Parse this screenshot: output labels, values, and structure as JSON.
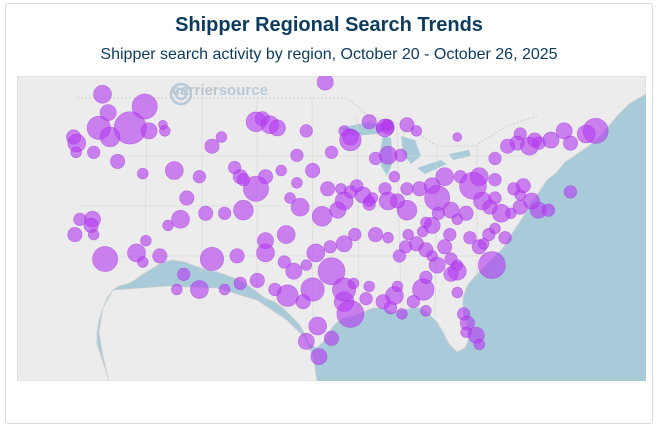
{
  "header": {
    "title": "Shipper Regional Search Trends",
    "subtitle": "Shipper search activity by region, October 20 - October 26, 2025"
  },
  "watermark": {
    "brand_part1": "carrier",
    "brand_part2": "source",
    "icon": "carriersource-logo-icon"
  },
  "colors": {
    "water": "#a9cbd9",
    "land": "#ececec",
    "border": "#c8c8c8",
    "bubble": "#b43cf0",
    "bubble_stroke": "#9a2ad8",
    "title": "#0c3b5e"
  },
  "bubbles": [
    [
      0.49,
      0.02,
      0.9
    ],
    [
      0.136,
      0.06,
      1.0
    ],
    [
      0.203,
      0.1,
      1.4
    ],
    [
      0.145,
      0.12,
      0.9
    ],
    [
      0.13,
      0.17,
      1.3
    ],
    [
      0.18,
      0.17,
      1.8
    ],
    [
      0.148,
      0.2,
      1.1
    ],
    [
      0.21,
      0.18,
      0.9
    ],
    [
      0.235,
      0.18,
      0.6
    ],
    [
      0.232,
      0.16,
      0.5
    ],
    [
      0.39,
      0.14,
      0.8
    ],
    [
      0.402,
      0.16,
      1.0
    ],
    [
      0.38,
      0.15,
      1.1
    ],
    [
      0.414,
      0.17,
      0.9
    ],
    [
      0.46,
      0.18,
      0.7
    ],
    [
      0.52,
      0.18,
      0.6
    ],
    [
      0.56,
      0.15,
      0.8
    ],
    [
      0.578,
      0.17,
      0.5
    ],
    [
      0.59,
      0.17,
      0.7
    ],
    [
      0.59,
      0.16,
      0.6
    ],
    [
      0.587,
      0.16,
      0.6
    ],
    [
      0.53,
      0.2,
      0.9
    ],
    [
      0.53,
      0.21,
      1.2
    ],
    [
      0.585,
      0.17,
      1.0
    ],
    [
      0.59,
      0.26,
      1.0
    ],
    [
      0.62,
      0.16,
      0.8
    ],
    [
      0.635,
      0.18,
      0.6
    ],
    [
      0.7,
      0.2,
      0.5
    ],
    [
      0.8,
      0.19,
      0.7
    ],
    [
      0.795,
      0.22,
      0.8
    ],
    [
      0.823,
      0.21,
      0.8
    ],
    [
      0.815,
      0.23,
      1.0
    ],
    [
      0.83,
      0.22,
      0.7
    ],
    [
      0.849,
      0.21,
      0.9
    ],
    [
      0.87,
      0.18,
      0.9
    ],
    [
      0.92,
      0.18,
      1.4
    ],
    [
      0.905,
      0.19,
      1.0
    ],
    [
      0.88,
      0.22,
      0.8
    ],
    [
      0.09,
      0.2,
      0.8
    ],
    [
      0.095,
      0.22,
      1.0
    ],
    [
      0.094,
      0.25,
      0.6
    ],
    [
      0.122,
      0.25,
      0.7
    ],
    [
      0.16,
      0.28,
      0.8
    ],
    [
      0.25,
      0.31,
      1.0
    ],
    [
      0.29,
      0.33,
      0.7
    ],
    [
      0.355,
      0.33,
      0.8
    ],
    [
      0.395,
      0.33,
      0.8
    ],
    [
      0.445,
      0.35,
      0.6
    ],
    [
      0.494,
      0.37,
      0.8
    ],
    [
      0.515,
      0.37,
      0.6
    ],
    [
      0.53,
      0.38,
      0.7
    ],
    [
      0.55,
      0.39,
      0.9
    ],
    [
      0.565,
      0.4,
      0.6
    ],
    [
      0.585,
      0.37,
      0.7
    ],
    [
      0.62,
      0.37,
      0.7
    ],
    [
      0.68,
      0.33,
      1.0
    ],
    [
      0.705,
      0.33,
      0.7
    ],
    [
      0.725,
      0.36,
      1.5
    ],
    [
      0.735,
      0.33,
      1.0
    ],
    [
      0.76,
      0.34,
      0.7
    ],
    [
      0.79,
      0.37,
      0.7
    ],
    [
      0.805,
      0.36,
      0.8
    ],
    [
      0.6,
      0.33,
      0.6
    ],
    [
      0.64,
      0.37,
      0.8
    ],
    [
      0.66,
      0.36,
      0.9
    ],
    [
      0.668,
      0.4,
      1.4
    ],
    [
      0.69,
      0.44,
      0.9
    ],
    [
      0.714,
      0.45,
      0.8
    ],
    [
      0.74,
      0.41,
      1.0
    ],
    [
      0.752,
      0.43,
      0.8
    ],
    [
      0.77,
      0.45,
      1.0
    ],
    [
      0.8,
      0.43,
      0.8
    ],
    [
      0.829,
      0.44,
      0.9
    ],
    [
      0.845,
      0.44,
      0.7
    ],
    [
      0.785,
      0.45,
      0.6
    ],
    [
      0.818,
      0.41,
      0.9
    ],
    [
      0.8,
      0.39,
      0.6
    ],
    [
      0.76,
      0.4,
      0.7
    ],
    [
      0.7,
      0.47,
      0.6
    ],
    [
      0.688,
      0.52,
      0.7
    ],
    [
      0.66,
      0.49,
      0.9
    ],
    [
      0.645,
      0.51,
      0.6
    ],
    [
      0.62,
      0.44,
      1.1
    ],
    [
      0.605,
      0.41,
      0.8
    ],
    [
      0.59,
      0.41,
      1.0
    ],
    [
      0.56,
      0.42,
      0.7
    ],
    [
      0.52,
      0.41,
      1.0
    ],
    [
      0.51,
      0.44,
      0.9
    ],
    [
      0.485,
      0.46,
      1.1
    ],
    [
      0.45,
      0.43,
      1.0
    ],
    [
      0.434,
      0.4,
      0.6
    ],
    [
      0.38,
      0.37,
      1.4
    ],
    [
      0.36,
      0.44,
      1.1
    ],
    [
      0.33,
      0.45,
      0.7
    ],
    [
      0.26,
      0.47,
      1.0
    ],
    [
      0.24,
      0.49,
      0.6
    ],
    [
      0.12,
      0.47,
      0.9
    ],
    [
      0.118,
      0.49,
      0.8
    ],
    [
      0.1,
      0.47,
      0.7
    ],
    [
      0.092,
      0.52,
      0.8
    ],
    [
      0.122,
      0.52,
      0.6
    ],
    [
      0.14,
      0.6,
      1.4
    ],
    [
      0.19,
      0.58,
      1.0
    ],
    [
      0.205,
      0.54,
      0.6
    ],
    [
      0.2,
      0.61,
      0.6
    ],
    [
      0.227,
      0.59,
      0.8
    ],
    [
      0.265,
      0.65,
      0.7
    ],
    [
      0.31,
      0.6,
      1.3
    ],
    [
      0.35,
      0.59,
      0.8
    ],
    [
      0.395,
      0.58,
      1.0
    ],
    [
      0.395,
      0.54,
      0.9
    ],
    [
      0.428,
      0.52,
      1.0
    ],
    [
      0.425,
      0.61,
      0.7
    ],
    [
      0.44,
      0.64,
      0.9
    ],
    [
      0.46,
      0.62,
      0.6
    ],
    [
      0.475,
      0.58,
      1.0
    ],
    [
      0.498,
      0.56,
      0.7
    ],
    [
      0.52,
      0.55,
      0.9
    ],
    [
      0.537,
      0.52,
      0.7
    ],
    [
      0.57,
      0.52,
      0.8
    ],
    [
      0.59,
      0.53,
      0.6
    ],
    [
      0.618,
      0.56,
      0.7
    ],
    [
      0.635,
      0.55,
      0.8
    ],
    [
      0.622,
      0.52,
      0.6
    ],
    [
      0.608,
      0.59,
      0.7
    ],
    [
      0.65,
      0.57,
      0.8
    ],
    [
      0.66,
      0.59,
      0.6
    ],
    [
      0.68,
      0.56,
      0.8
    ],
    [
      0.668,
      0.62,
      0.9
    ],
    [
      0.69,
      0.6,
      0.7
    ],
    [
      0.72,
      0.53,
      0.7
    ],
    [
      0.735,
      0.56,
      0.8
    ],
    [
      0.742,
      0.55,
      0.6
    ],
    [
      0.75,
      0.52,
      0.7
    ],
    [
      0.76,
      0.5,
      0.6
    ],
    [
      0.776,
      0.53,
      0.7
    ],
    [
      0.7,
      0.64,
      1.0
    ],
    [
      0.755,
      0.62,
      1.5
    ],
    [
      0.7,
      0.62,
      0.6
    ],
    [
      0.69,
      0.65,
      0.8
    ],
    [
      0.65,
      0.66,
      0.7
    ],
    [
      0.646,
      0.7,
      1.2
    ],
    [
      0.63,
      0.74,
      0.7
    ],
    [
      0.6,
      0.72,
      1.0
    ],
    [
      0.582,
      0.74,
      0.8
    ],
    [
      0.605,
      0.69,
      0.6
    ],
    [
      0.56,
      0.69,
      0.6
    ],
    [
      0.555,
      0.73,
      0.7
    ],
    [
      0.52,
      0.74,
      1.1
    ],
    [
      0.52,
      0.7,
      1.3
    ],
    [
      0.535,
      0.68,
      0.6
    ],
    [
      0.5,
      0.64,
      1.5
    ],
    [
      0.47,
      0.7,
      1.3
    ],
    [
      0.455,
      0.74,
      0.8
    ],
    [
      0.43,
      0.72,
      1.2
    ],
    [
      0.41,
      0.7,
      0.7
    ],
    [
      0.382,
      0.67,
      0.8
    ],
    [
      0.355,
      0.68,
      0.7
    ],
    [
      0.33,
      0.7,
      0.6
    ],
    [
      0.29,
      0.7,
      1.0
    ],
    [
      0.254,
      0.7,
      0.6
    ],
    [
      0.53,
      0.78,
      1.5
    ],
    [
      0.478,
      0.82,
      1.0
    ],
    [
      0.5,
      0.86,
      0.8
    ],
    [
      0.46,
      0.87,
      0.9
    ],
    [
      0.48,
      0.92,
      0.9
    ],
    [
      0.594,
      0.76,
      0.7
    ],
    [
      0.612,
      0.78,
      0.6
    ],
    [
      0.65,
      0.77,
      0.6
    ],
    [
      0.7,
      0.71,
      0.6
    ],
    [
      0.71,
      0.78,
      0.7
    ],
    [
      0.716,
      0.81,
      0.8
    ],
    [
      0.714,
      0.84,
      0.6
    ],
    [
      0.73,
      0.85,
      0.9
    ],
    [
      0.735,
      0.88,
      0.6
    ],
    [
      0.3,
      0.45,
      0.8
    ],
    [
      0.445,
      0.26,
      0.7
    ],
    [
      0.31,
      0.23,
      0.8
    ],
    [
      0.325,
      0.2,
      0.6
    ],
    [
      0.346,
      0.3,
      0.7
    ],
    [
      0.36,
      0.34,
      0.7
    ],
    [
      0.2,
      0.32,
      0.6
    ],
    [
      0.27,
      0.4,
      0.8
    ],
    [
      0.56,
      0.41,
      0.6
    ],
    [
      0.54,
      0.36,
      0.7
    ],
    [
      0.47,
      0.31,
      0.8
    ],
    [
      0.42,
      0.31,
      0.6
    ],
    [
      0.57,
      0.27,
      0.7
    ],
    [
      0.61,
      0.26,
      0.7
    ],
    [
      0.5,
      0.25,
      0.7
    ],
    [
      0.88,
      0.38,
      0.7
    ],
    [
      0.76,
      0.27,
      0.7
    ],
    [
      0.78,
      0.23,
      0.8
    ],
    [
      0.67,
      0.45,
      0.7
    ],
    [
      0.65,
      0.48,
      0.6
    ]
  ]
}
